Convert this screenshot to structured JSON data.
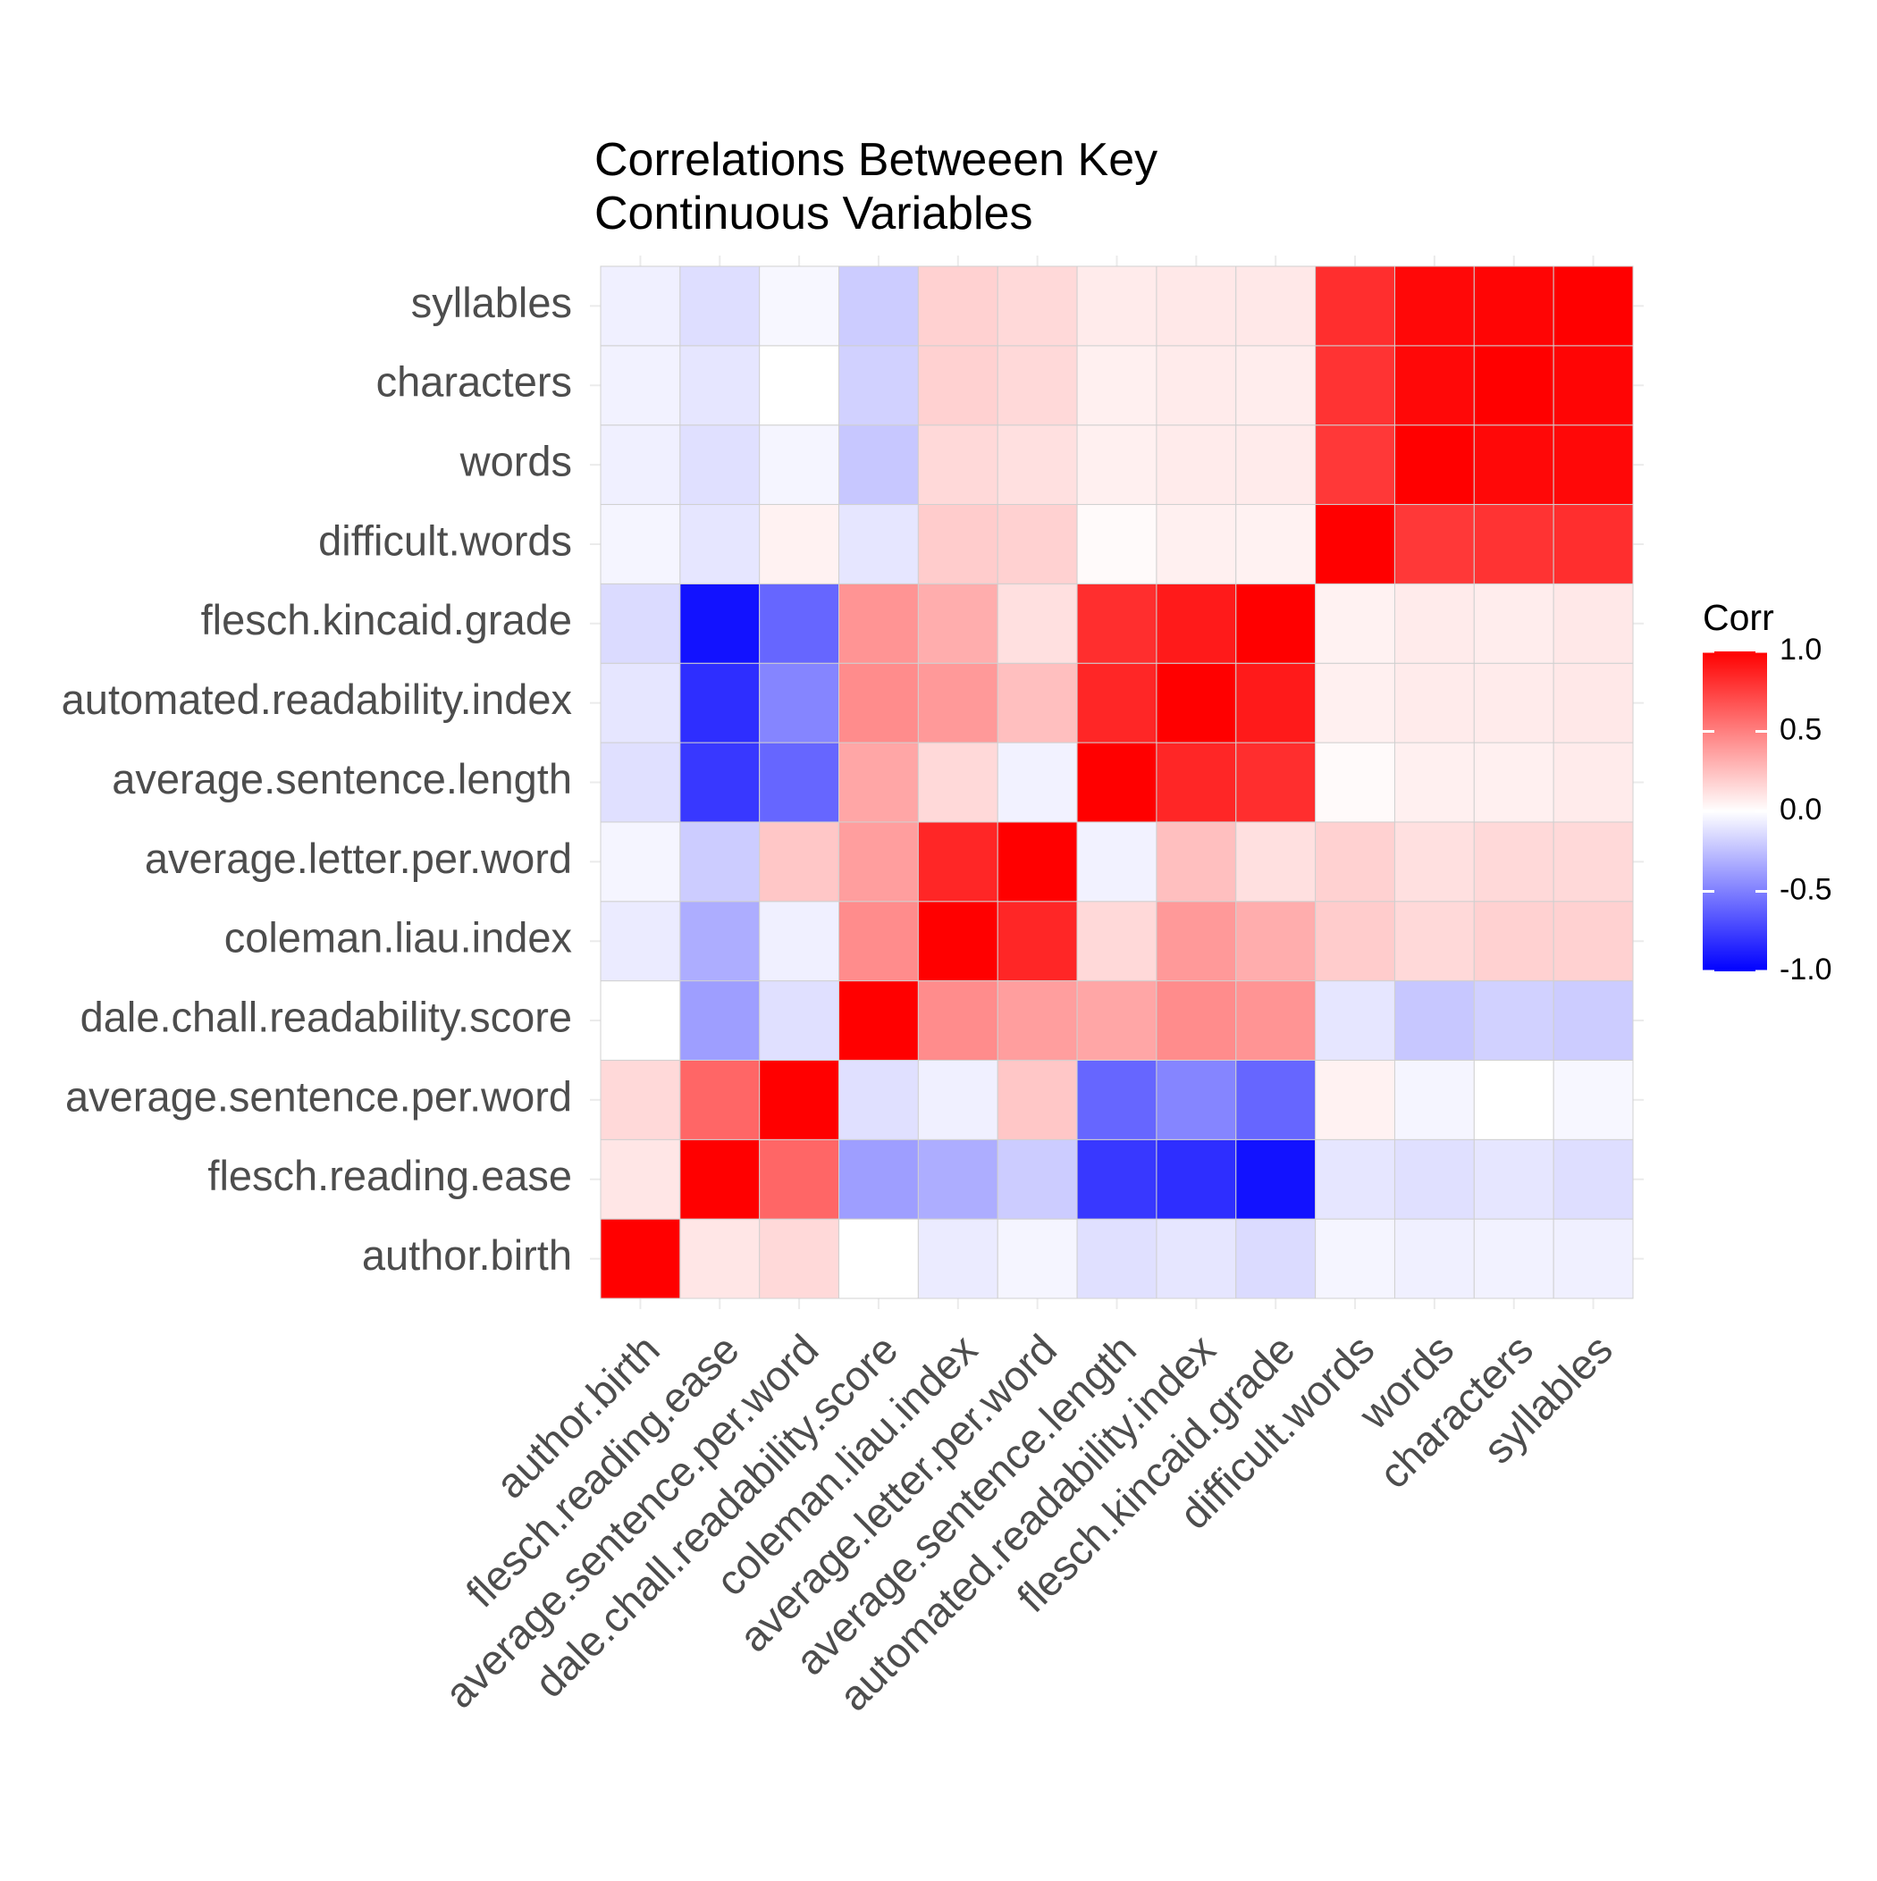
{
  "chart_data": {
    "type": "heatmap",
    "title_lines": [
      "Correlations Betweeen Key",
      "Continuous Variables"
    ],
    "variables": [
      "author.birth",
      "flesch.reading.ease",
      "average.sentence.per.word",
      "dale.chall.readability.score",
      "coleman.liau.index",
      "average.letter.per.word",
      "average.sentence.length",
      "automated.readability.index",
      "flesch.kincaid.grade",
      "difficult.words",
      "words",
      "characters",
      "syllables"
    ],
    "matrix": [
      [
        1.0,
        0.1,
        0.15,
        0.0,
        -0.08,
        -0.04,
        -0.12,
        -0.1,
        -0.14,
        -0.04,
        -0.06,
        -0.05,
        -0.06
      ],
      [
        0.1,
        1.0,
        0.6,
        -0.38,
        -0.32,
        -0.2,
        -0.78,
        -0.82,
        -0.93,
        -0.1,
        -0.12,
        -0.1,
        -0.13
      ],
      [
        0.15,
        0.6,
        1.0,
        -0.12,
        -0.06,
        0.22,
        -0.6,
        -0.48,
        -0.6,
        0.05,
        -0.04,
        0.0,
        -0.03
      ],
      [
        0.0,
        -0.38,
        -0.12,
        1.0,
        0.45,
        0.38,
        0.35,
        0.45,
        0.42,
        -0.1,
        -0.22,
        -0.18,
        -0.2
      ],
      [
        -0.08,
        -0.32,
        -0.06,
        0.45,
        1.0,
        0.85,
        0.15,
        0.4,
        0.32,
        0.2,
        0.15,
        0.18,
        0.18
      ],
      [
        -0.04,
        -0.2,
        0.22,
        0.38,
        0.85,
        1.0,
        -0.05,
        0.25,
        0.12,
        0.18,
        0.12,
        0.15,
        0.15
      ],
      [
        -0.12,
        -0.78,
        -0.6,
        0.35,
        0.15,
        -0.05,
        1.0,
        0.85,
        0.82,
        0.02,
        0.06,
        0.06,
        0.08
      ],
      [
        -0.1,
        -0.82,
        -0.48,
        0.45,
        0.4,
        0.25,
        0.85,
        1.0,
        0.9,
        0.06,
        0.08,
        0.08,
        0.09
      ],
      [
        -0.14,
        -0.93,
        -0.6,
        0.42,
        0.32,
        0.12,
        0.82,
        0.9,
        1.0,
        0.05,
        0.08,
        0.07,
        0.09
      ],
      [
        -0.04,
        -0.1,
        0.05,
        -0.1,
        0.2,
        0.18,
        0.02,
        0.06,
        0.05,
        1.0,
        0.78,
        0.8,
        0.82
      ],
      [
        -0.06,
        -0.12,
        -0.04,
        -0.22,
        0.15,
        0.12,
        0.06,
        0.08,
        0.08,
        0.78,
        1.0,
        0.97,
        0.97
      ],
      [
        -0.05,
        -0.1,
        0.0,
        -0.18,
        0.18,
        0.15,
        0.06,
        0.08,
        0.07,
        0.8,
        0.97,
        1.0,
        0.98
      ],
      [
        -0.06,
        -0.13,
        -0.03,
        -0.2,
        0.18,
        0.15,
        0.08,
        0.09,
        0.09,
        0.82,
        0.97,
        0.98,
        1.0
      ]
    ],
    "legend": {
      "title": "Corr",
      "ticks": [
        {
          "value": 1.0,
          "label": "1.0"
        },
        {
          "value": 0.5,
          "label": "0.5"
        },
        {
          "value": 0.0,
          "label": "0.0"
        },
        {
          "value": -0.5,
          "label": "-0.5"
        },
        {
          "value": -1.0,
          "label": "-1.0"
        }
      ],
      "placement": "right"
    },
    "value_range": [
      -1,
      1
    ],
    "colors": {
      "low": "#0000FF",
      "mid": "#FFFFFF",
      "high": "#FF0000",
      "tile_border": "#d0d0d0",
      "grid": "#ebebeb"
    }
  }
}
